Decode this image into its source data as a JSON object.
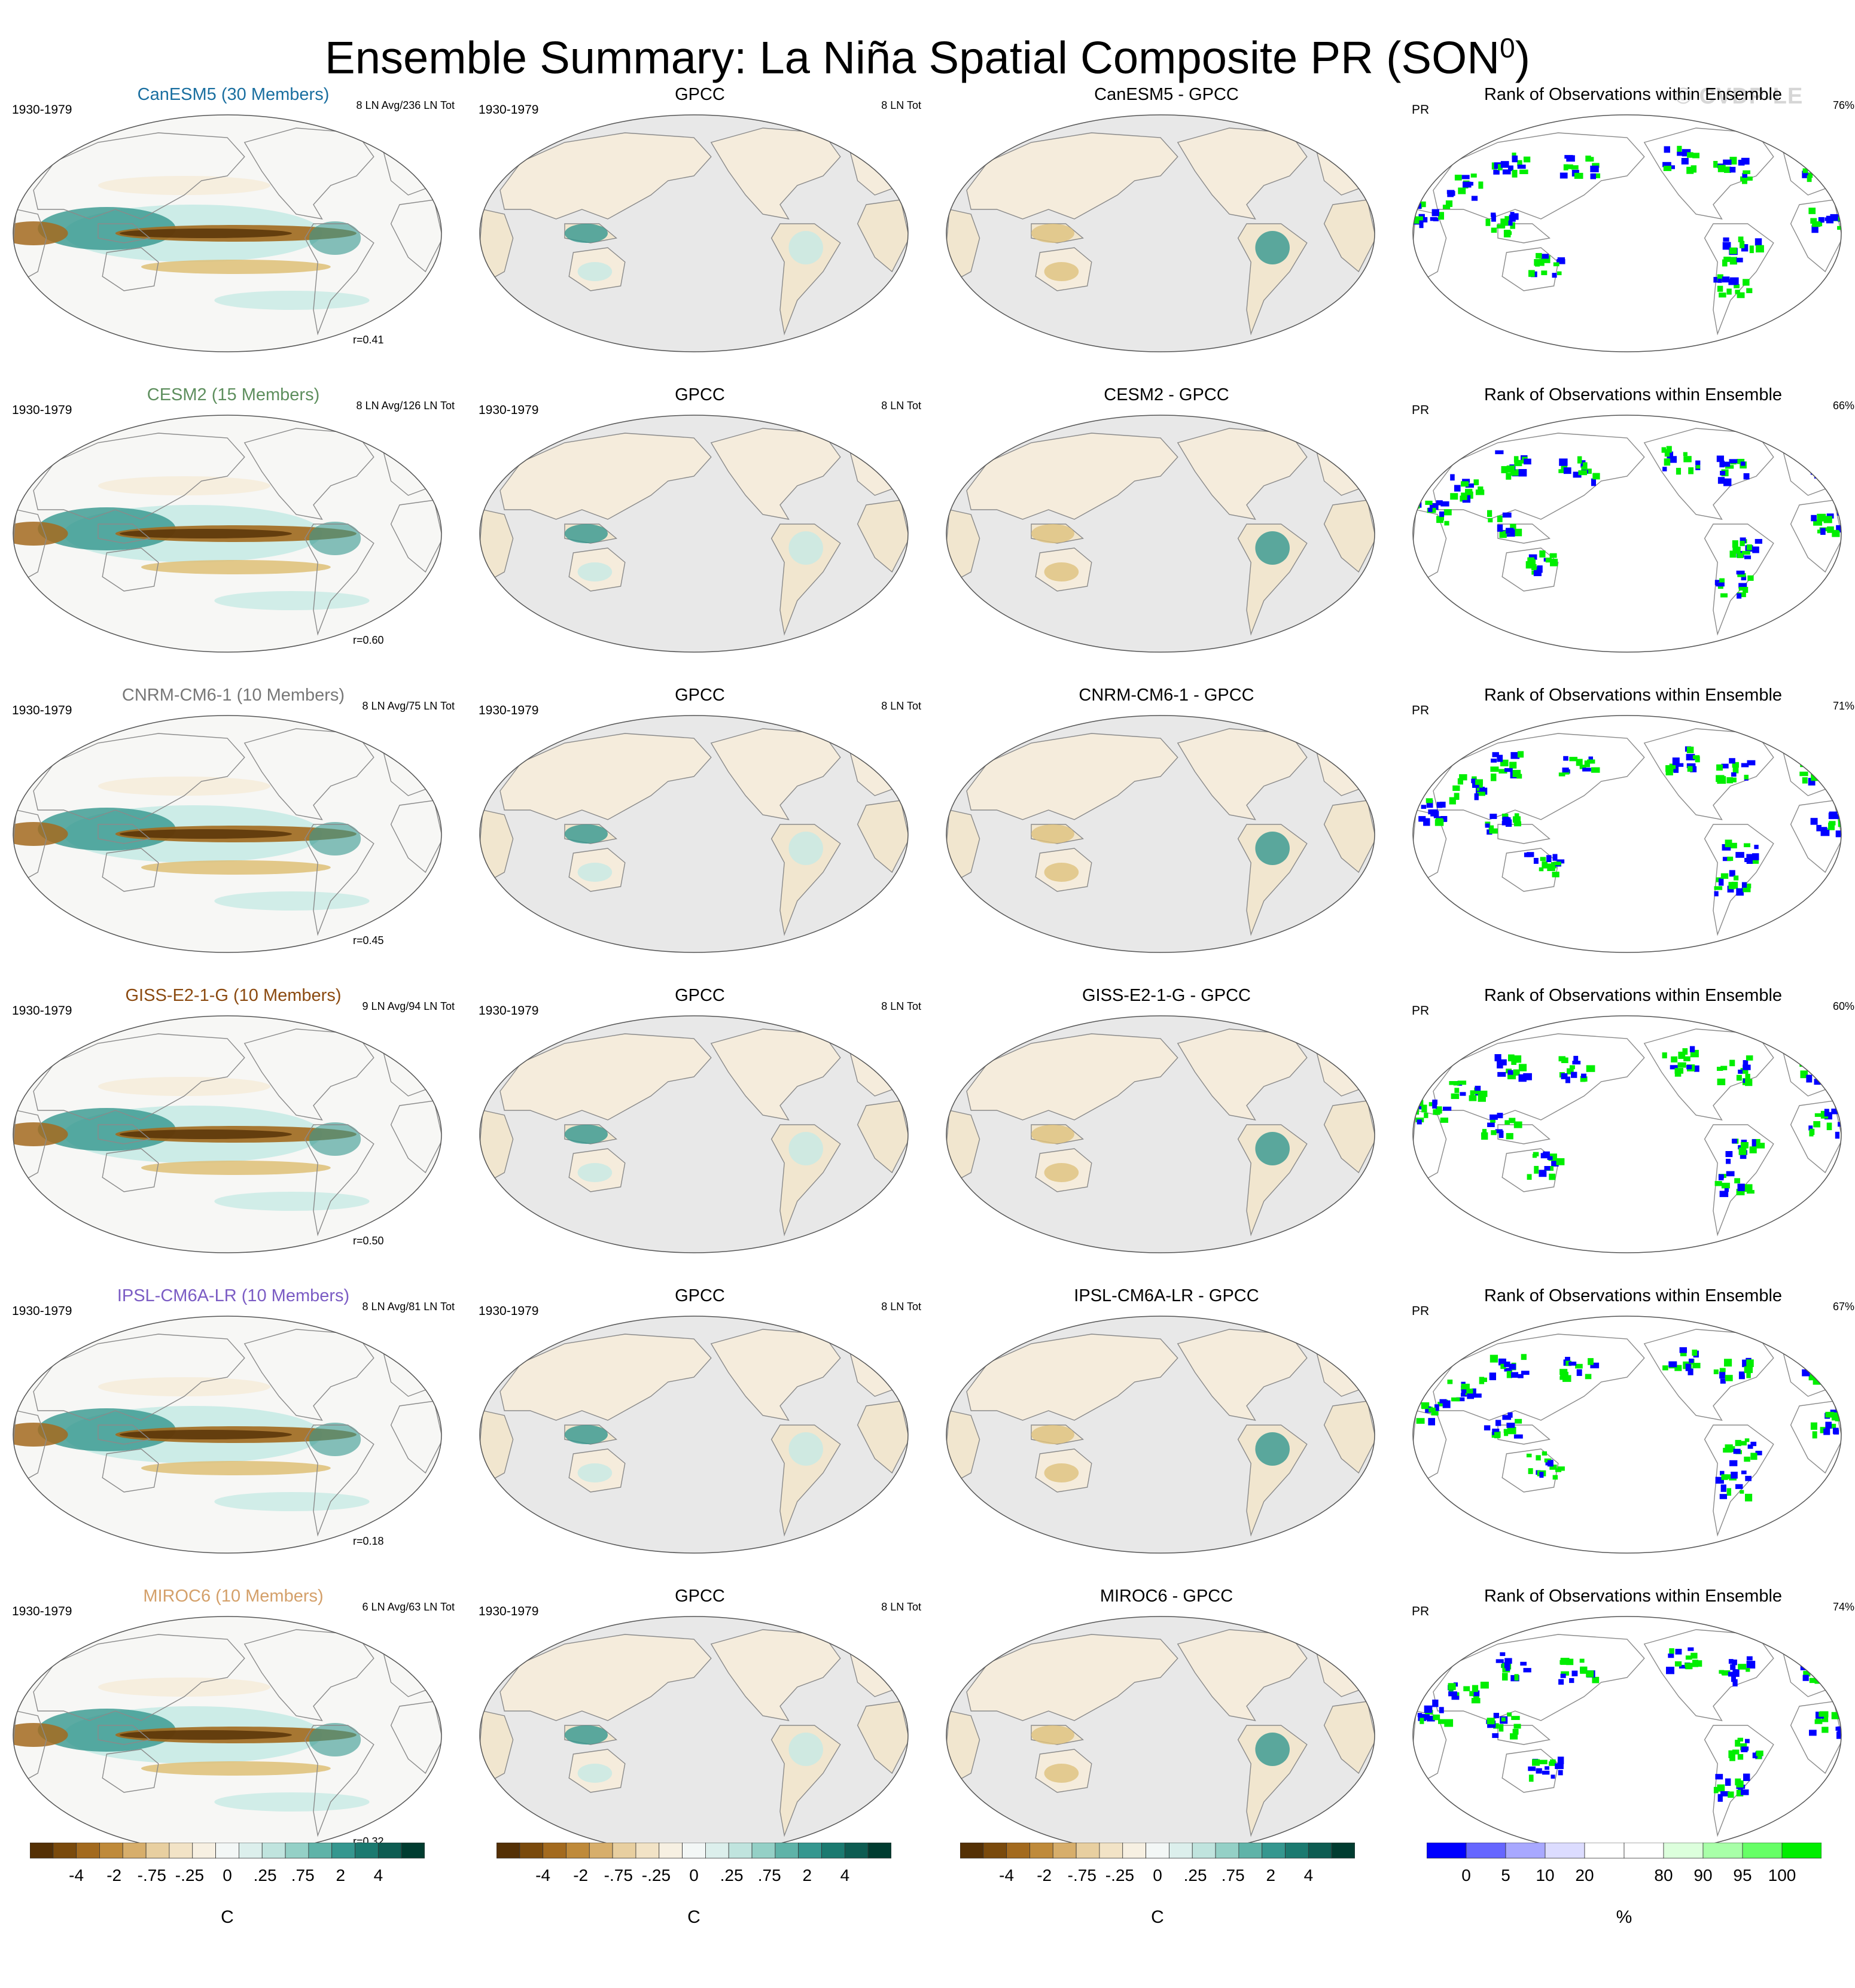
{
  "title": "Ensemble Summary: La Niña Spatial Composite PR (SON",
  "title_sup": "0",
  "title_close": ")",
  "watermark": "© CVDP-LE",
  "colors": {
    "brown_dark": "#543005",
    "brown": "#a36a1e",
    "tan": "#dfc27d",
    "cream": "#f5ecdc",
    "white": "#f7f7f5",
    "teal_light": "#c7eae5",
    "teal": "#35978f",
    "teal_dark": "#003c30",
    "land_gray": "#e8e8e8",
    "rank_blue": "#0000ff",
    "rank_green": "#00ee00"
  },
  "chart_data": {
    "type": "heatmap",
    "rows": [
      {
        "model": "CanESM5 (30 Members)",
        "model_color": "#1a6fa0",
        "diff_title": "CanESM5 - GPCC",
        "period": "1930-1979",
        "ln_info": "8 LN Avg/236 LN Tot",
        "corr": "r=0.41",
        "rank_pct": "76%"
      },
      {
        "model": "CESM2 (15 Members)",
        "model_color": "#5e8f5e",
        "diff_title": "CESM2 - GPCC",
        "period": "1930-1979",
        "ln_info": "8 LN Avg/126 LN Tot",
        "corr": "r=0.60",
        "rank_pct": "66%"
      },
      {
        "model": "CNRM-CM6-1 (10 Members)",
        "model_color": "#777777",
        "diff_title": "CNRM-CM6-1 - GPCC",
        "period": "1930-1979",
        "ln_info": "8 LN Avg/75 LN Tot",
        "corr": "r=0.45",
        "rank_pct": "71%"
      },
      {
        "model": "GISS-E2-1-G (10 Members)",
        "model_color": "#8b4a10",
        "diff_title": "GISS-E2-1-G - GPCC",
        "period": "1930-1979",
        "ln_info": "9 LN Avg/94 LN Tot",
        "corr": "r=0.50",
        "rank_pct": "60%"
      },
      {
        "model": "IPSL-CM6A-LR (10 Members)",
        "model_color": "#7b5cc4",
        "diff_title": "IPSL-CM6A-LR - GPCC",
        "period": "1930-1979",
        "ln_info": "8 LN Avg/81 LN Tot",
        "corr": "r=0.18",
        "rank_pct": "67%"
      },
      {
        "model": "MIROC6 (10 Members)",
        "model_color": "#d4a06a",
        "diff_title": "MIROC6 - GPCC",
        "period": "1930-1979",
        "ln_info": "6 LN Avg/63 LN Tot",
        "corr": "r=0.32",
        "rank_pct": "74%"
      }
    ],
    "obs_title": "GPCC",
    "obs_period": "1930-1979",
    "obs_ln_info": "8 LN Tot",
    "rank_title": "Rank of Observations within Ensemble",
    "rank_var": "PR",
    "colorbar_pr": {
      "labels": [
        "-4",
        "-2",
        "-.75",
        "-.25",
        "0",
        ".25",
        ".75",
        "2",
        "4"
      ],
      "colors": [
        "#543005",
        "#7a4a0c",
        "#a36a1e",
        "#bf8a3a",
        "#d7ae6b",
        "#e8cfa0",
        "#f2e3c6",
        "#f7f0e2",
        "#f3f7f6",
        "#dcefec",
        "#c0e4de",
        "#94d0c6",
        "#5fb3a8",
        "#35978f",
        "#1b7a70",
        "#0d5c52",
        "#003c30"
      ],
      "unit": "C"
    },
    "colorbar_rank": {
      "labels": [
        "0",
        "5",
        "10",
        "20",
        "80",
        "90",
        "95",
        "100"
      ],
      "colors": [
        "#0000ff",
        "#6666ff",
        "#a8a8ff",
        "#dcdcff",
        "#ffffff",
        "#ffffff",
        "#dcffdc",
        "#a8ffa8",
        "#66ff66",
        "#00ee00"
      ],
      "unit": "%"
    }
  }
}
